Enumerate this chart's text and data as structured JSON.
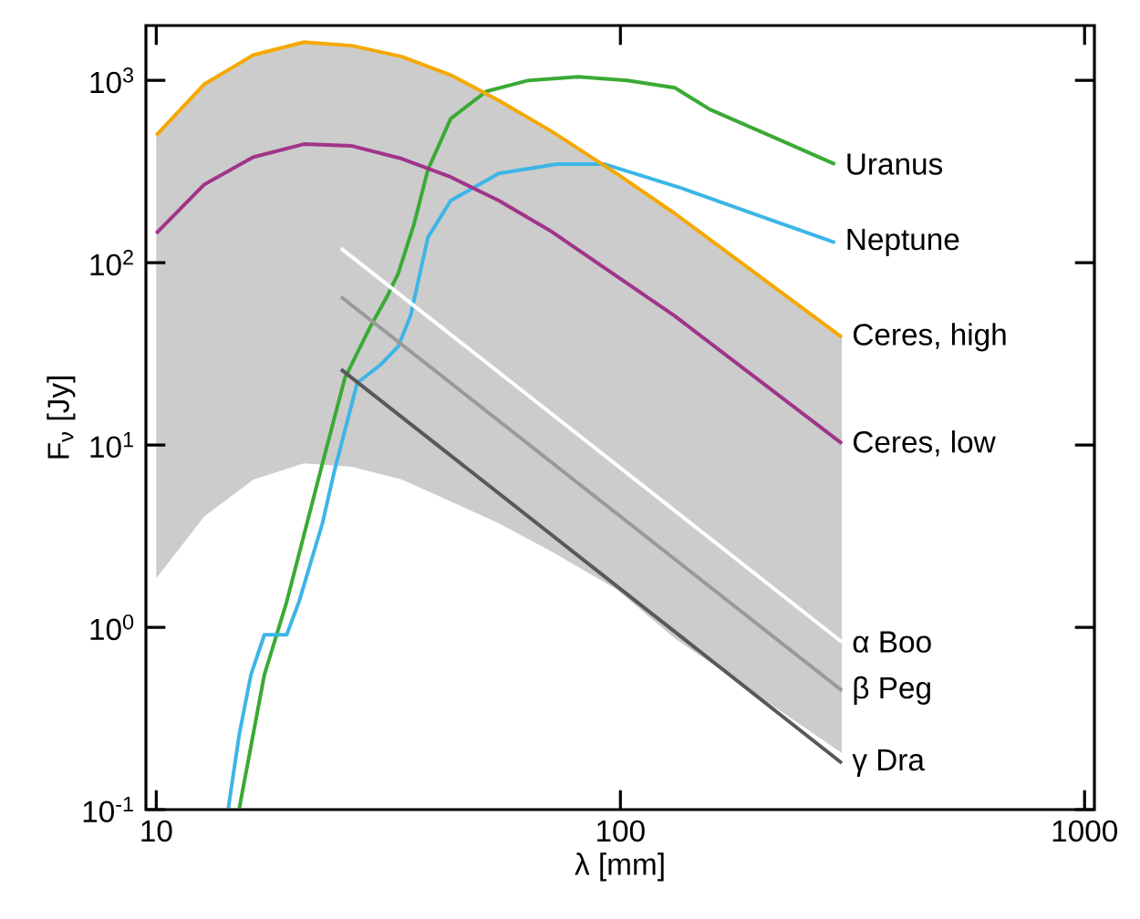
{
  "chart_data": {
    "type": "line",
    "xlabel": "λ  [mm]",
    "ylabel": "F$_{ν}$  [Jy]",
    "log": "xy",
    "legend": false,
    "grid": false,
    "line_style": "solid",
    "marker": "none",
    "xlim": [
      9.5,
      1050
    ],
    "ylim": [
      0.1,
      2000
    ],
    "xticks": [
      10,
      100,
      1000
    ],
    "yticks": [
      {
        "value": 0.1,
        "label": "10$^{-1}$"
      },
      {
        "value": 1,
        "label": "10$^{0}$"
      },
      {
        "value": 10,
        "label": "10$^{1}$"
      },
      {
        "value": 100,
        "label": "10$^{2}$"
      },
      {
        "value": 1000,
        "label": "10$^{3}$"
      }
    ],
    "series": [
      {
        "name": "Uranus",
        "color": "#3aaa35",
        "x": [
          15.1,
          17.1,
          19.1,
          22.8,
          25.5,
          28.8,
          31.5,
          33.2,
          35.9,
          38.5,
          43.1,
          51.4,
          63.4,
          81.1,
          103.5,
          131,
          156,
          222,
          290
        ],
        "values": [
          0.102,
          0.55,
          1.38,
          7.9,
          23.4,
          43.7,
          66,
          87,
          162,
          324,
          617,
          870,
          1000,
          1047,
          1000,
          912,
          692,
          468,
          347
        ]
      },
      {
        "name": "Neptune",
        "color": "#3db5e6",
        "x": [
          14.3,
          15.1,
          16.0,
          17.1,
          19.1,
          20.3,
          22.8,
          24.2,
          27.1,
          30.4,
          33.2,
          35.3,
          38.5,
          43.1,
          54.7,
          73,
          92.5,
          135,
          208,
          290
        ],
        "values": [
          0.102,
          0.26,
          0.55,
          0.91,
          0.91,
          1.38,
          3.72,
          7.2,
          21.9,
          27.5,
          34.7,
          51,
          138,
          219,
          309,
          347,
          347,
          257,
          174,
          129
        ]
      },
      {
        "name": "Ceres, high",
        "color": "#f5a800",
        "x": [
          10,
          12.7,
          16.2,
          20.8,
          26.4,
          33.8,
          43.1,
          54.7,
          71.1,
          98,
          131,
          300
        ],
        "values": [
          500,
          955,
          1380,
          1620,
          1550,
          1350,
          1070,
          776,
          525,
          309,
          186,
          39
        ],
        "lower": [
          1.86,
          4.07,
          6.46,
          7.94,
          7.59,
          6.46,
          4.9,
          3.72,
          2.6,
          1.62,
          0.87,
          0.204
        ],
        "upper": [
          500,
          955,
          1380,
          1620,
          1550,
          1350,
          1070,
          776,
          525,
          309,
          186,
          39
        ]
      },
      {
        "name": "Ceres, low",
        "color": "#a0348a",
        "x": [
          10,
          12.7,
          16.2,
          20.8,
          26.4,
          33.8,
          43.1,
          54.7,
          71.1,
          131,
          300
        ],
        "values": [
          145,
          269,
          380,
          447,
          437,
          372,
          295,
          219,
          148,
          51,
          10.2
        ]
      },
      {
        "name": "α Boo",
        "color": "#ffffff",
        "x": [
          25,
          300
        ],
        "values": [
          120,
          0.83
        ]
      },
      {
        "name": "β Peg",
        "color": "#999999",
        "x": [
          25,
          300
        ],
        "values": [
          65,
          0.45
        ]
      },
      {
        "name": "γ Dra",
        "color": "#595959",
        "x": [
          25,
          300
        ],
        "values": [
          26,
          0.18
        ]
      }
    ]
  }
}
